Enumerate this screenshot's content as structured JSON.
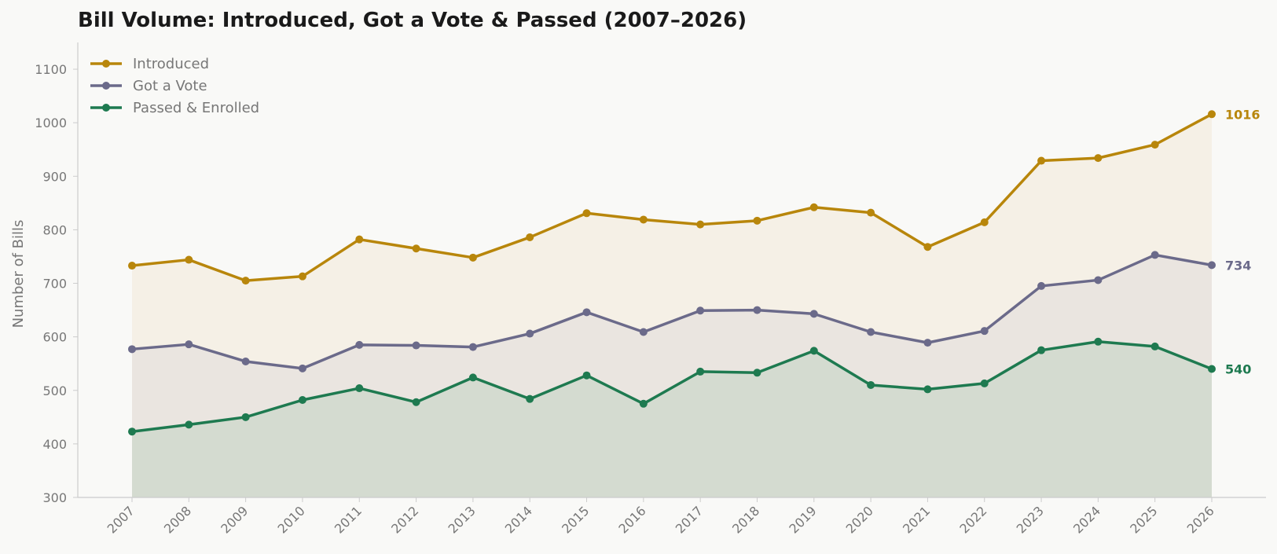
{
  "chart_data": {
    "type": "line",
    "title": "Bill Volume: Introduced, Got a Vote & Passed (2007–2026)",
    "xlabel": "",
    "ylabel": "Number of Bills",
    "ylim": [
      300,
      1150
    ],
    "yticks": [
      300,
      400,
      500,
      600,
      700,
      800,
      900,
      1000,
      1100
    ],
    "categories": [
      "2007",
      "2008",
      "2009",
      "2010",
      "2011",
      "2012",
      "2013",
      "2014",
      "2015",
      "2016",
      "2017",
      "2018",
      "2019",
      "2020",
      "2021",
      "2022",
      "2023",
      "2024",
      "2025",
      "2026"
    ],
    "legend_position": "top-left",
    "grid": false,
    "filled_area": true,
    "series": [
      {
        "name": "Introduced",
        "color": "#b8860b",
        "fill": "#f4efe3",
        "values": [
          733,
          744,
          705,
          713,
          782,
          765,
          748,
          786,
          831,
          819,
          810,
          817,
          842,
          832,
          768,
          814,
          929,
          934,
          959,
          1016
        ],
        "end_label": "1016"
      },
      {
        "name": "Got a Vote",
        "color": "#6b6a8a",
        "fill": "#e8e3de",
        "values": [
          577,
          586,
          554,
          541,
          585,
          584,
          581,
          606,
          646,
          609,
          649,
          650,
          643,
          609,
          589,
          611,
          695,
          706,
          753,
          734
        ],
        "end_label": "734"
      },
      {
        "name": "Passed & Enrolled",
        "color": "#1e7a50",
        "fill": "#d0d9cd",
        "values": [
          423,
          436,
          450,
          482,
          504,
          478,
          524,
          484,
          528,
          475,
          535,
          533,
          574,
          510,
          502,
          513,
          575,
          591,
          582,
          540
        ],
        "end_label": "540"
      }
    ]
  }
}
